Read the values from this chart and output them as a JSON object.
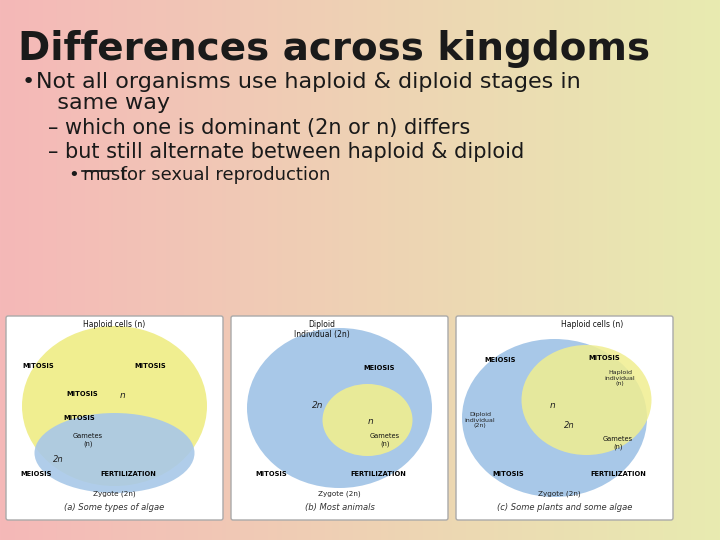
{
  "title": "Differences across kingdoms",
  "bullet1_line1": "Not all organisms use haploid & diploid stages in",
  "bullet1_line2": "   same way",
  "sub1": "– which one is dominant (2n or n) differs",
  "sub2": "– but still alternate between haploid & diploid",
  "sub_bullet_word": "must",
  "sub_bullet_rest": " for sexual reproduction",
  "bg_color_left": "#f5b8b8",
  "bg_color_right": "#e8ebb0",
  "title_fontsize": 28,
  "bullet_fontsize": 16,
  "sub_fontsize": 15,
  "sub_bullet_fontsize": 13,
  "caption_a": "(a) Some types of algae",
  "caption_b": "(b) Most animals",
  "caption_c": "(c) Some plants and some algae",
  "text_color": "#1a1a1a"
}
